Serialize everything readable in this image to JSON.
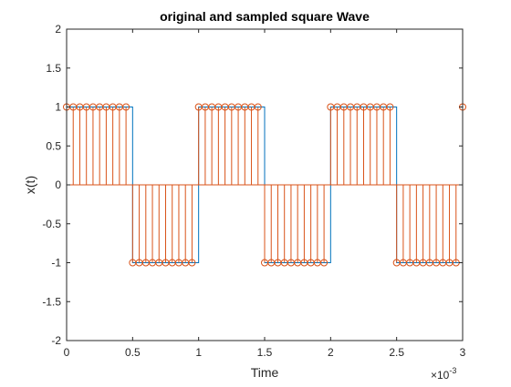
{
  "chart_data": {
    "type": "line",
    "title": "original and sampled square Wave",
    "xlabel": "Time",
    "ylabel": "x(t)",
    "x_exponent_label": "×10",
    "x_exponent_power": "-3",
    "xlim": [
      0,
      3
    ],
    "ylim": [
      -2,
      2
    ],
    "x_ticks": [
      0,
      0.5,
      1,
      1.5,
      2,
      2.5,
      3
    ],
    "x_tick_labels": [
      "0",
      "0.5",
      "1",
      "1.5",
      "2",
      "2.5",
      "3"
    ],
    "y_ticks": [
      -2,
      -1.5,
      -1,
      -0.5,
      0,
      0.5,
      1,
      1.5,
      2
    ],
    "y_tick_labels": [
      "-2",
      "-1.5",
      "-1",
      "-0.5",
      "0",
      "0.5",
      "1",
      "1.5",
      "2"
    ],
    "grid": false,
    "colors": {
      "original": "#0072BD",
      "sampled": "#D95319",
      "axes": "#262626"
    },
    "series": [
      {
        "kind": "square-wave",
        "amplitude": 1,
        "period": 1,
        "duty": 0.5,
        "x_range": [
          0,
          3
        ]
      },
      {
        "kind": "stem",
        "sample_interval": 0.05,
        "x_range": [
          0,
          3
        ]
      }
    ]
  }
}
